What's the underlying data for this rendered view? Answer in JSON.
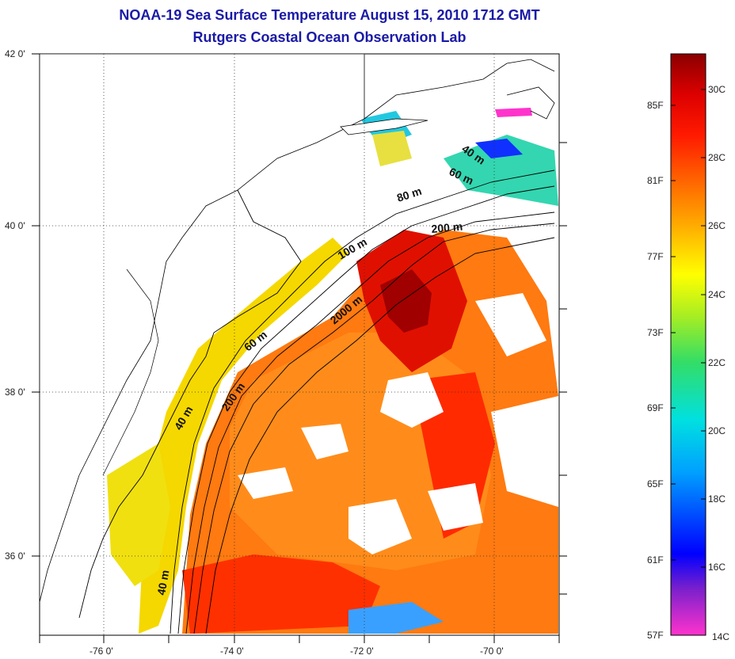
{
  "title": {
    "line1": "NOAA-19 Sea Surface Temperature August 15, 2010 1712 GMT",
    "line2": "Rutgers Coastal Ocean Observation Lab"
  },
  "map": {
    "lat_labels": [
      "42 0'",
      "40 0'",
      "38 0'",
      "36 0'"
    ],
    "lon_labels": [
      "-76 0'",
      "-74 0'",
      "-72 0'",
      "-70 0'"
    ],
    "contour_labels": [
      "40 m",
      "60 m",
      "80 m",
      "200 m",
      "100 m",
      "2000 m",
      "60 m",
      "40 m",
      "200 m",
      "40 m"
    ]
  },
  "colorbar": {
    "fahrenheit": [
      "85F",
      "81F",
      "77F",
      "73F",
      "69F",
      "65F",
      "61F",
      "57F"
    ],
    "celsius": [
      "30C",
      "28C",
      "26C",
      "24C",
      "22C",
      "20C",
      "18C",
      "16C",
      "14C"
    ],
    "colors": [
      "#ff33cc",
      "#7a20cc",
      "#0000ff",
      "#00a0ff",
      "#00e0e0",
      "#33dd66",
      "#a8ee22",
      "#ffff00",
      "#ffb000",
      "#ff6600",
      "#ff1a00",
      "#dd0000",
      "#8a0000"
    ]
  }
}
